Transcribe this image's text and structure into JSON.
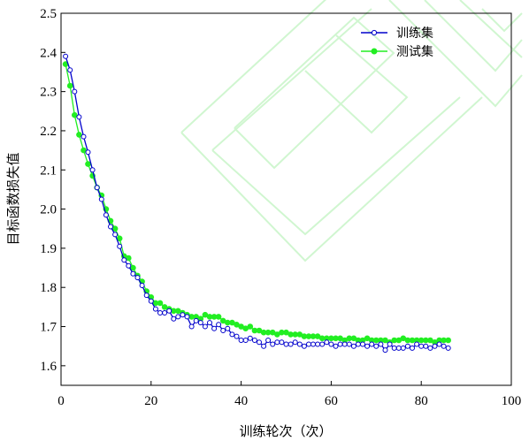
{
  "chart_data": {
    "type": "line",
    "title": "",
    "xlabel": "训练轮次（次）",
    "ylabel": "目标函数损失值",
    "xlim": [
      0,
      100
    ],
    "ylim": [
      1.55,
      2.5
    ],
    "xticks": [
      0,
      20,
      40,
      60,
      80,
      100
    ],
    "yticks": [
      1.6,
      1.7,
      1.8,
      1.9,
      2.0,
      2.1,
      2.2,
      2.3,
      2.4,
      2.5
    ],
    "xtick_labels": [
      "0",
      "20",
      "40",
      "60",
      "80",
      "100"
    ],
    "ytick_labels": [
      "1.6",
      "1.7",
      "1.8",
      "1.9",
      "2.0",
      "2.1",
      "2.2",
      "2.3",
      "2.4",
      "2.5"
    ],
    "grid": false,
    "legend_position": "top-right",
    "series": [
      {
        "name": "训练集",
        "color": "#0000cc",
        "marker": "open-circle",
        "x": [
          1,
          2,
          3,
          4,
          5,
          6,
          7,
          8,
          9,
          10,
          11,
          12,
          13,
          14,
          15,
          16,
          17,
          18,
          19,
          20,
          21,
          22,
          23,
          24,
          25,
          26,
          27,
          28,
          29,
          30,
          31,
          32,
          33,
          34,
          35,
          36,
          37,
          38,
          39,
          40,
          41,
          42,
          43,
          44,
          45,
          46,
          47,
          48,
          49,
          50,
          51,
          52,
          53,
          54,
          55,
          56,
          57,
          58,
          59,
          60,
          61,
          62,
          63,
          64,
          65,
          66,
          67,
          68,
          69,
          70,
          71,
          72,
          73,
          74,
          75,
          76,
          77,
          78,
          79,
          80,
          81,
          82,
          83,
          84,
          85,
          86
        ],
        "y": [
          2.39,
          2.355,
          2.3,
          2.235,
          2.185,
          2.145,
          2.1,
          2.055,
          2.025,
          1.985,
          1.955,
          1.935,
          1.905,
          1.87,
          1.855,
          1.835,
          1.825,
          1.805,
          1.78,
          1.765,
          1.745,
          1.735,
          1.735,
          1.74,
          1.72,
          1.725,
          1.73,
          1.725,
          1.7,
          1.715,
          1.71,
          1.7,
          1.71,
          1.695,
          1.705,
          1.69,
          1.695,
          1.68,
          1.675,
          1.665,
          1.665,
          1.67,
          1.665,
          1.66,
          1.65,
          1.665,
          1.655,
          1.66,
          1.66,
          1.655,
          1.655,
          1.66,
          1.655,
          1.65,
          1.655,
          1.655,
          1.655,
          1.655,
          1.66,
          1.655,
          1.65,
          1.655,
          1.655,
          1.655,
          1.65,
          1.655,
          1.655,
          1.65,
          1.655,
          1.65,
          1.655,
          1.64,
          1.655,
          1.645,
          1.645,
          1.645,
          1.65,
          1.645,
          1.655,
          1.65,
          1.65,
          1.645,
          1.65,
          1.655,
          1.65,
          1.645
        ]
      },
      {
        "name": "测试集",
        "color": "#22ee22",
        "marker": "filled-circle",
        "x": [
          1,
          2,
          3,
          4,
          5,
          6,
          7,
          8,
          9,
          10,
          11,
          12,
          13,
          14,
          15,
          16,
          17,
          18,
          19,
          20,
          21,
          22,
          23,
          24,
          25,
          26,
          27,
          28,
          29,
          30,
          31,
          32,
          33,
          34,
          35,
          36,
          37,
          38,
          39,
          40,
          41,
          42,
          43,
          44,
          45,
          46,
          47,
          48,
          49,
          50,
          51,
          52,
          53,
          54,
          55,
          56,
          57,
          58,
          59,
          60,
          61,
          62,
          63,
          64,
          65,
          66,
          67,
          68,
          69,
          70,
          71,
          72,
          73,
          74,
          75,
          76,
          77,
          78,
          79,
          80,
          81,
          82,
          83,
          84,
          85,
          86
        ],
        "y": [
          2.37,
          2.315,
          2.24,
          2.19,
          2.15,
          2.115,
          2.085,
          2.055,
          2.035,
          2.0,
          1.97,
          1.95,
          1.925,
          1.88,
          1.875,
          1.85,
          1.83,
          1.815,
          1.79,
          1.775,
          1.76,
          1.76,
          1.75,
          1.745,
          1.74,
          1.74,
          1.735,
          1.73,
          1.725,
          1.725,
          1.72,
          1.73,
          1.725,
          1.725,
          1.725,
          1.715,
          1.71,
          1.71,
          1.705,
          1.7,
          1.695,
          1.7,
          1.69,
          1.69,
          1.685,
          1.685,
          1.685,
          1.68,
          1.685,
          1.685,
          1.68,
          1.68,
          1.68,
          1.675,
          1.675,
          1.675,
          1.675,
          1.67,
          1.67,
          1.67,
          1.67,
          1.67,
          1.665,
          1.67,
          1.67,
          1.665,
          1.665,
          1.67,
          1.665,
          1.665,
          1.665,
          1.665,
          1.66,
          1.665,
          1.665,
          1.67,
          1.665,
          1.665,
          1.665,
          1.665,
          1.665,
          1.665,
          1.66,
          1.665,
          1.665,
          1.665
        ]
      }
    ]
  }
}
